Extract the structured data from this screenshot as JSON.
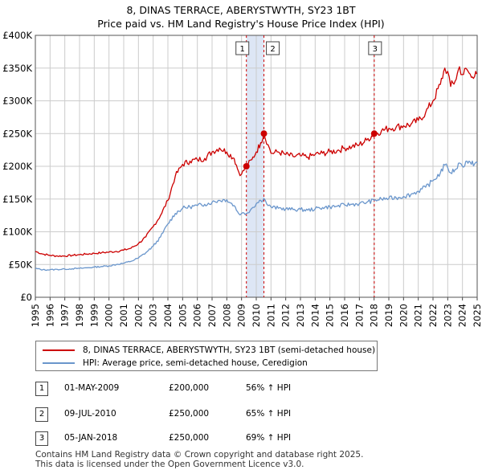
{
  "header": {
    "title": "8, DINAS TERRACE, ABERYSTWYTH, SY23 1BT",
    "subtitle": "Price paid vs. HM Land Registry's House Price Index (HPI)"
  },
  "colors": {
    "price": "#cc0000",
    "hpi": "#6a96cc",
    "shade": "#dde6f5",
    "marker": "#cc0000"
  },
  "chart_data": {
    "type": "line",
    "xlim": [
      1995,
      2025
    ],
    "ylim": [
      0,
      400000
    ],
    "y_ticks": [
      0,
      50000,
      100000,
      150000,
      200000,
      250000,
      300000,
      350000,
      400000
    ],
    "y_tick_labels": [
      "£0",
      "£50K",
      "£100K",
      "£150K",
      "£200K",
      "£250K",
      "£300K",
      "£350K",
      "£400K"
    ],
    "x_ticks": [
      "1995",
      "1996",
      "1997",
      "1998",
      "1999",
      "2000",
      "2001",
      "2002",
      "2003",
      "2004",
      "2005",
      "2006",
      "2007",
      "2008",
      "2009",
      "2010",
      "2011",
      "2012",
      "2013",
      "2014",
      "2015",
      "2016",
      "2017",
      "2018",
      "2019",
      "2020",
      "2021",
      "2022",
      "2023",
      "2024",
      "2025"
    ],
    "grid": true,
    "shaded_ranges": [
      [
        2009.33,
        2010.52
      ]
    ],
    "series": [
      {
        "name": "8, DINAS TERRACE, ABERYSTWYTH, SY23 1BT (semi-detached house)",
        "key": "price",
        "points": [
          [
            1995.0,
            70000
          ],
          [
            1995.5,
            66000
          ],
          [
            1996.0,
            64000
          ],
          [
            1996.5,
            63000
          ],
          [
            1997.0,
            63000
          ],
          [
            1997.5,
            64000
          ],
          [
            1998.0,
            65000
          ],
          [
            1998.5,
            66000
          ],
          [
            1999.0,
            67000
          ],
          [
            1999.5,
            68000
          ],
          [
            2000.0,
            69000
          ],
          [
            2000.5,
            70000
          ],
          [
            2001.0,
            72000
          ],
          [
            2001.5,
            75000
          ],
          [
            2002.0,
            82000
          ],
          [
            2002.5,
            92000
          ],
          [
            2003.0,
            108000
          ],
          [
            2003.5,
            125000
          ],
          [
            2004.0,
            148000
          ],
          [
            2004.5,
            185000
          ],
          [
            2005.0,
            203000
          ],
          [
            2005.5,
            208000
          ],
          [
            2006.0,
            210000
          ],
          [
            2006.5,
            212000
          ],
          [
            2007.0,
            222000
          ],
          [
            2007.5,
            228000
          ],
          [
            2008.0,
            222000
          ],
          [
            2008.5,
            212000
          ],
          [
            2008.8,
            192000
          ],
          [
            2009.0,
            188000
          ],
          [
            2009.33,
            200000
          ],
          [
            2009.7,
            210000
          ],
          [
            2010.0,
            222000
          ],
          [
            2010.3,
            236000
          ],
          [
            2010.52,
            250000
          ],
          [
            2010.8,
            233000
          ],
          [
            2011.0,
            220000
          ],
          [
            2011.5,
            222000
          ],
          [
            2012.0,
            218000
          ],
          [
            2012.5,
            215000
          ],
          [
            2013.0,
            216000
          ],
          [
            2013.5,
            214000
          ],
          [
            2014.0,
            218000
          ],
          [
            2014.5,
            220000
          ],
          [
            2015.0,
            222000
          ],
          [
            2015.5,
            224000
          ],
          [
            2016.0,
            228000
          ],
          [
            2016.5,
            230000
          ],
          [
            2017.0,
            233000
          ],
          [
            2017.5,
            240000
          ],
          [
            2018.01,
            250000
          ],
          [
            2018.5,
            254000
          ],
          [
            2019.0,
            258000
          ],
          [
            2019.5,
            260000
          ],
          [
            2020.0,
            262000
          ],
          [
            2020.5,
            264000
          ],
          [
            2021.0,
            270000
          ],
          [
            2021.5,
            282000
          ],
          [
            2022.0,
            300000
          ],
          [
            2022.5,
            325000
          ],
          [
            2022.8,
            350000
          ],
          [
            2023.0,
            345000
          ],
          [
            2023.2,
            322000
          ],
          [
            2023.5,
            330000
          ],
          [
            2023.8,
            352000
          ],
          [
            2024.0,
            340000
          ],
          [
            2024.3,
            348000
          ],
          [
            2024.6,
            336000
          ],
          [
            2024.9,
            345000
          ],
          [
            2025.0,
            342000
          ]
        ]
      },
      {
        "name": "HPI: Average price, semi-detached house, Ceredigion",
        "key": "hpi",
        "points": [
          [
            1995.0,
            44000
          ],
          [
            1995.5,
            42000
          ],
          [
            1996.0,
            42000
          ],
          [
            1996.5,
            42500
          ],
          [
            1997.0,
            43000
          ],
          [
            1997.5,
            43500
          ],
          [
            1998.0,
            44000
          ],
          [
            1998.5,
            45000
          ],
          [
            1999.0,
            46000
          ],
          [
            1999.5,
            47000
          ],
          [
            2000.0,
            48000
          ],
          [
            2000.5,
            50000
          ],
          [
            2001.0,
            52000
          ],
          [
            2001.5,
            55000
          ],
          [
            2002.0,
            60000
          ],
          [
            2002.5,
            68000
          ],
          [
            2003.0,
            78000
          ],
          [
            2003.5,
            92000
          ],
          [
            2004.0,
            112000
          ],
          [
            2004.5,
            128000
          ],
          [
            2005.0,
            136000
          ],
          [
            2005.5,
            138000
          ],
          [
            2006.0,
            140000
          ],
          [
            2006.5,
            142000
          ],
          [
            2007.0,
            145000
          ],
          [
            2007.5,
            148000
          ],
          [
            2008.0,
            149000
          ],
          [
            2008.5,
            140000
          ],
          [
            2008.8,
            128000
          ],
          [
            2009.0,
            128000
          ],
          [
            2009.33,
            128000
          ],
          [
            2009.7,
            136000
          ],
          [
            2010.0,
            143000
          ],
          [
            2010.3,
            148000
          ],
          [
            2010.52,
            151000
          ],
          [
            2010.8,
            140000
          ],
          [
            2011.0,
            138000
          ],
          [
            2011.5,
            136000
          ],
          [
            2012.0,
            135000
          ],
          [
            2012.5,
            134000
          ],
          [
            2013.0,
            134000
          ],
          [
            2013.5,
            133000
          ],
          [
            2014.0,
            135000
          ],
          [
            2014.5,
            137000
          ],
          [
            2015.0,
            138000
          ],
          [
            2015.5,
            139000
          ],
          [
            2016.0,
            141000
          ],
          [
            2016.5,
            142000
          ],
          [
            2017.0,
            143000
          ],
          [
            2017.5,
            145000
          ],
          [
            2018.01,
            148000
          ],
          [
            2018.5,
            150000
          ],
          [
            2019.0,
            151000
          ],
          [
            2019.5,
            152000
          ],
          [
            2020.0,
            154000
          ],
          [
            2020.5,
            157000
          ],
          [
            2021.0,
            162000
          ],
          [
            2021.5,
            168000
          ],
          [
            2022.0,
            178000
          ],
          [
            2022.5,
            190000
          ],
          [
            2022.8,
            202000
          ],
          [
            2023.0,
            198000
          ],
          [
            2023.2,
            190000
          ],
          [
            2023.5,
            195000
          ],
          [
            2023.8,
            205000
          ],
          [
            2024.0,
            200000
          ],
          [
            2024.3,
            208000
          ],
          [
            2024.6,
            203000
          ],
          [
            2024.9,
            206000
          ],
          [
            2025.0,
            205000
          ]
        ]
      }
    ],
    "sales": [
      {
        "label": "1",
        "year": 2009.33,
        "price": 200000
      },
      {
        "label": "2",
        "year": 2010.52,
        "price": 250000
      },
      {
        "label": "3",
        "year": 2018.01,
        "price": 250000
      }
    ]
  },
  "legend": {
    "price_label": "8, DINAS TERRACE, ABERYSTWYTH, SY23 1BT (semi-detached house)",
    "hpi_label": "HPI: Average price, semi-detached house, Ceredigion"
  },
  "transactions": [
    {
      "num": "1",
      "date": "01-MAY-2009",
      "price": "£200,000",
      "hpi": "56% ↑ HPI"
    },
    {
      "num": "2",
      "date": "09-JUL-2010",
      "price": "£250,000",
      "hpi": "65% ↑ HPI"
    },
    {
      "num": "3",
      "date": "05-JAN-2018",
      "price": "£250,000",
      "hpi": "69% ↑ HPI"
    }
  ],
  "footer": {
    "line1": "Contains HM Land Registry data © Crown copyright and database right 2025.",
    "line2": "This data is licensed under the Open Government Licence v3.0."
  }
}
